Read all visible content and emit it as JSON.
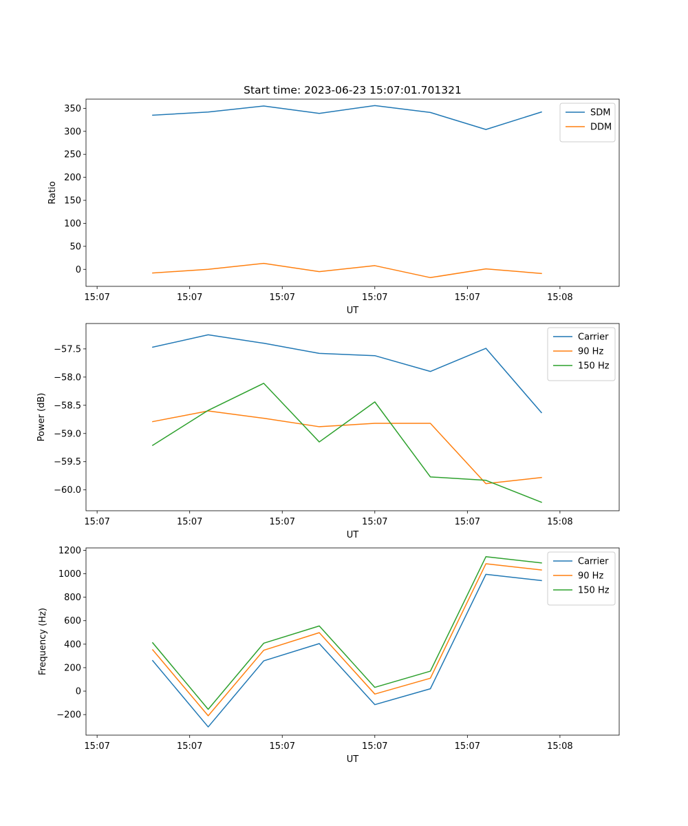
{
  "figure": {
    "title": "Start time: 2023-06-23 15:07:01.701321"
  },
  "chart_data": [
    {
      "type": "line",
      "x": [
        0.3,
        0.6,
        0.9,
        1.2,
        1.5,
        1.8,
        2.1,
        2.4
      ],
      "xlim": [
        -0.06,
        2.82
      ],
      "xticks": [
        0,
        0.5,
        1.0,
        1.5,
        2.0,
        2.5
      ],
      "xtick_labels": [
        "15:07",
        "15:07",
        "15:07",
        "15:07",
        "15:07",
        "15:08"
      ],
      "xlabel": "UT",
      "ylabel": "Ratio",
      "ylim": [
        -37,
        370
      ],
      "yticks": [
        0,
        50,
        100,
        150,
        200,
        250,
        300,
        350
      ],
      "ytick_labels": [
        "0",
        "50",
        "100",
        "150",
        "200",
        "250",
        "300",
        "350"
      ],
      "legend": "top-right",
      "series": [
        {
          "name": "SDM",
          "color": "#1f77b4",
          "values": [
            335,
            342,
            355,
            339,
            356,
            341,
            304,
            342
          ]
        },
        {
          "name": "DDM",
          "color": "#ff7f0e",
          "values": [
            -8,
            0,
            13,
            -5,
            8,
            -18,
            1,
            -9
          ]
        }
      ]
    },
    {
      "type": "line",
      "x": [
        0.3,
        0.6,
        0.9,
        1.2,
        1.5,
        1.8,
        2.1,
        2.4
      ],
      "xlim": [
        -0.06,
        2.82
      ],
      "xticks": [
        0,
        0.5,
        1.0,
        1.5,
        2.0,
        2.5
      ],
      "xtick_labels": [
        "15:07",
        "15:07",
        "15:07",
        "15:07",
        "15:07",
        "15:08"
      ],
      "xlabel": "UT",
      "ylabel": "Power (dB)",
      "ylim": [
        -60.37,
        -57.05
      ],
      "yticks": [
        -60.0,
        -59.5,
        -59.0,
        -58.5,
        -58.0,
        -57.5
      ],
      "ytick_labels": [
        "−60.0",
        "−59.5",
        "−59.0",
        "−58.5",
        "−58.0",
        "−57.5"
      ],
      "legend": "top-right",
      "series": [
        {
          "name": "Carrier",
          "color": "#1f77b4",
          "values": [
            -57.47,
            -57.25,
            -57.4,
            -57.58,
            -57.62,
            -57.9,
            -57.49,
            -58.63
          ]
        },
        {
          "name": "90 Hz",
          "color": "#ff7f0e",
          "values": [
            -58.79,
            -58.6,
            -58.73,
            -58.88,
            -58.82,
            -58.82,
            -59.89,
            -59.78
          ]
        },
        {
          "name": "150 Hz",
          "color": "#2ca02c",
          "values": [
            -59.21,
            -58.59,
            -58.11,
            -59.15,
            -58.44,
            -59.77,
            -59.83,
            -60.22
          ]
        }
      ]
    },
    {
      "type": "line",
      "x": [
        0.3,
        0.6,
        0.9,
        1.2,
        1.5,
        1.8,
        2.1,
        2.4
      ],
      "xlim": [
        -0.06,
        2.82
      ],
      "xticks": [
        0,
        0.5,
        1.0,
        1.5,
        2.0,
        2.5
      ],
      "xtick_labels": [
        "15:07",
        "15:07",
        "15:07",
        "15:07",
        "15:07",
        "15:08"
      ],
      "xlabel": "UT",
      "ylabel": "Frequency (Hz)",
      "ylim": [
        -375,
        1220
      ],
      "yticks": [
        -200,
        0,
        200,
        400,
        600,
        800,
        1000,
        1200
      ],
      "ytick_labels": [
        "−200",
        "0",
        "200",
        "400",
        "600",
        "800",
        "1000",
        "1200"
      ],
      "legend": "top-right",
      "series": [
        {
          "name": "Carrier",
          "color": "#1f77b4",
          "values": [
            260,
            -305,
            258,
            405,
            -115,
            20,
            995,
            942
          ]
        },
        {
          "name": "90 Hz",
          "color": "#ff7f0e",
          "values": [
            352,
            -210,
            348,
            498,
            -25,
            110,
            1085,
            1032
          ]
        },
        {
          "name": "150 Hz",
          "color": "#2ca02c",
          "values": [
            412,
            -155,
            408,
            555,
            32,
            170,
            1145,
            1092
          ]
        }
      ]
    }
  ]
}
